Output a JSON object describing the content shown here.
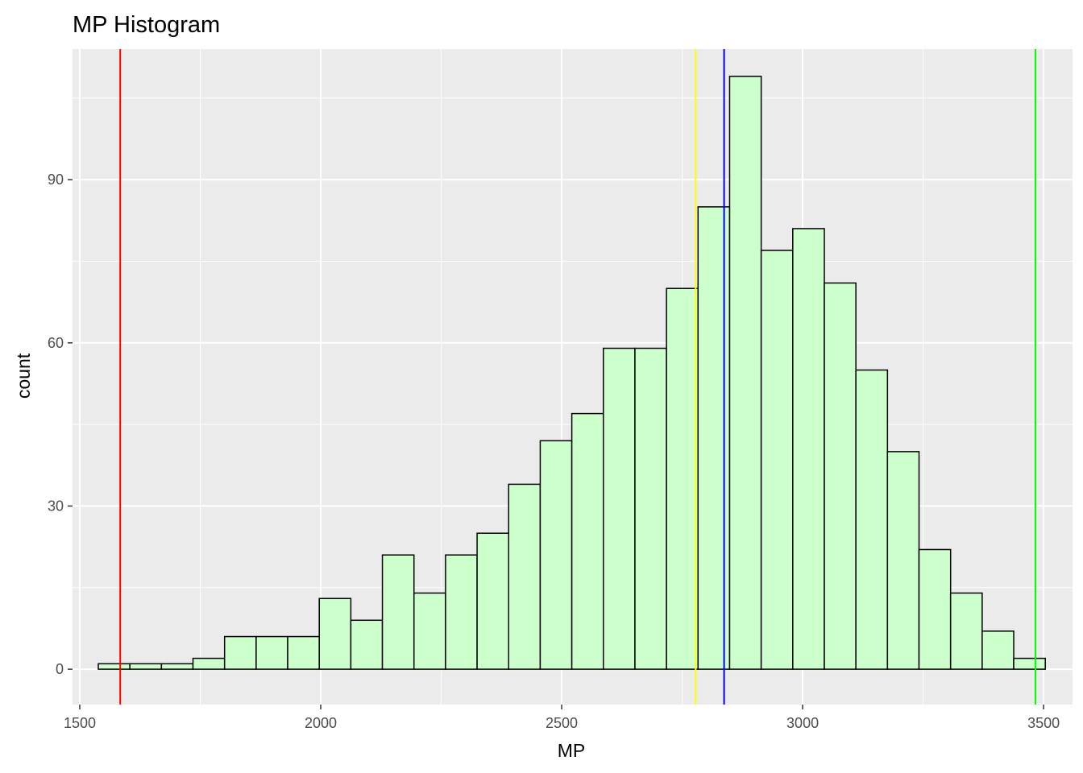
{
  "chart_data": {
    "type": "histogram",
    "title": "MP Histogram",
    "xlabel": "MP",
    "ylabel": "count",
    "xlim": [
      1485,
      3560
    ],
    "ylim": [
      -6.5,
      114
    ],
    "x_ticks": [
      1500,
      2000,
      2500,
      3000,
      3500
    ],
    "y_ticks": [
      0,
      30,
      60,
      90
    ],
    "grid": true,
    "bin_width": 65.5,
    "bins": [
      {
        "start": 1538.5,
        "count": 1
      },
      {
        "start": 1604.0,
        "count": 1
      },
      {
        "start": 1669.5,
        "count": 1
      },
      {
        "start": 1735.0,
        "count": 2
      },
      {
        "start": 1800.5,
        "count": 6
      },
      {
        "start": 1866.0,
        "count": 6
      },
      {
        "start": 1931.5,
        "count": 6
      },
      {
        "start": 1997.0,
        "count": 13
      },
      {
        "start": 2062.5,
        "count": 9
      },
      {
        "start": 2128.0,
        "count": 21
      },
      {
        "start": 2193.5,
        "count": 14
      },
      {
        "start": 2259.0,
        "count": 21
      },
      {
        "start": 2324.5,
        "count": 25
      },
      {
        "start": 2390.0,
        "count": 34
      },
      {
        "start": 2455.5,
        "count": 42
      },
      {
        "start": 2521.0,
        "count": 47
      },
      {
        "start": 2586.5,
        "count": 59
      },
      {
        "start": 2652.0,
        "count": 59
      },
      {
        "start": 2717.5,
        "count": 70
      },
      {
        "start": 2783.0,
        "count": 85
      },
      {
        "start": 2848.5,
        "count": 109
      },
      {
        "start": 2914.0,
        "count": 77
      },
      {
        "start": 2979.5,
        "count": 81
      },
      {
        "start": 3045.0,
        "count": 71
      },
      {
        "start": 3110.5,
        "count": 55
      },
      {
        "start": 3176.0,
        "count": 40
      },
      {
        "start": 3241.5,
        "count": 22
      },
      {
        "start": 3307.0,
        "count": 14
      },
      {
        "start": 3372.5,
        "count": 7
      },
      {
        "start": 3438.0,
        "count": 2
      }
    ],
    "bar_fill": "#ccffcc",
    "bar_stroke": "#000000",
    "panel_background": "#ebebeb",
    "vlines": [
      {
        "x": 1584,
        "color": "#ff0000"
      },
      {
        "x": 2778,
        "color": "#ffff00"
      },
      {
        "x": 2837,
        "color": "#0000ff"
      },
      {
        "x": 3483,
        "color": "#00ff00"
      }
    ]
  }
}
